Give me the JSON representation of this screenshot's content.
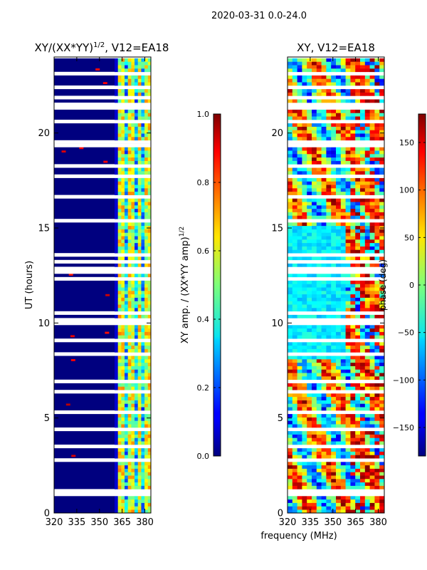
{
  "suptitle": "2020-03-31 0.0-24.0",
  "xlabel": "frequency (MHz)",
  "chart_data": [
    {
      "type": "heatmap",
      "title": "XY/(XX*YY)",
      "title_exponent": "1/2",
      "title_suffix": ", V12=EA18",
      "ylabel": "UT (hours)",
      "xlim": [
        320,
        384
      ],
      "ylim": [
        0,
        24
      ],
      "xticks": [
        320,
        335,
        350,
        365,
        380
      ],
      "yticks": [
        0,
        5,
        10,
        15,
        20
      ],
      "colorbar": {
        "label": "XY amp. / (XX*YY amp)",
        "label_exponent": "1/2",
        "range": [
          0.0,
          1.0
        ],
        "ticks": [
          "0.0",
          "0.2",
          "0.4",
          "0.6",
          "0.8",
          "1.0"
        ],
        "tick_values": [
          0.0,
          0.2,
          0.4,
          0.6,
          0.8,
          1.0
        ],
        "colormap": "jet"
      }
    },
    {
      "type": "heatmap",
      "title": "XY, V12=EA18",
      "xlim": [
        320,
        384
      ],
      "ylim": [
        0,
        24
      ],
      "xticks": [
        320,
        335,
        350,
        365,
        380
      ],
      "yticks": [
        0,
        5,
        10,
        15,
        20
      ],
      "colorbar": {
        "label": "phase (deg)",
        "range": [
          -180,
          180
        ],
        "ticks": [
          "−150",
          "−100",
          "−50",
          "0",
          "50",
          "100",
          "150"
        ],
        "tick_values": [
          -150,
          -100,
          -50,
          0,
          50,
          100,
          150
        ],
        "colormap": "jet"
      }
    }
  ]
}
